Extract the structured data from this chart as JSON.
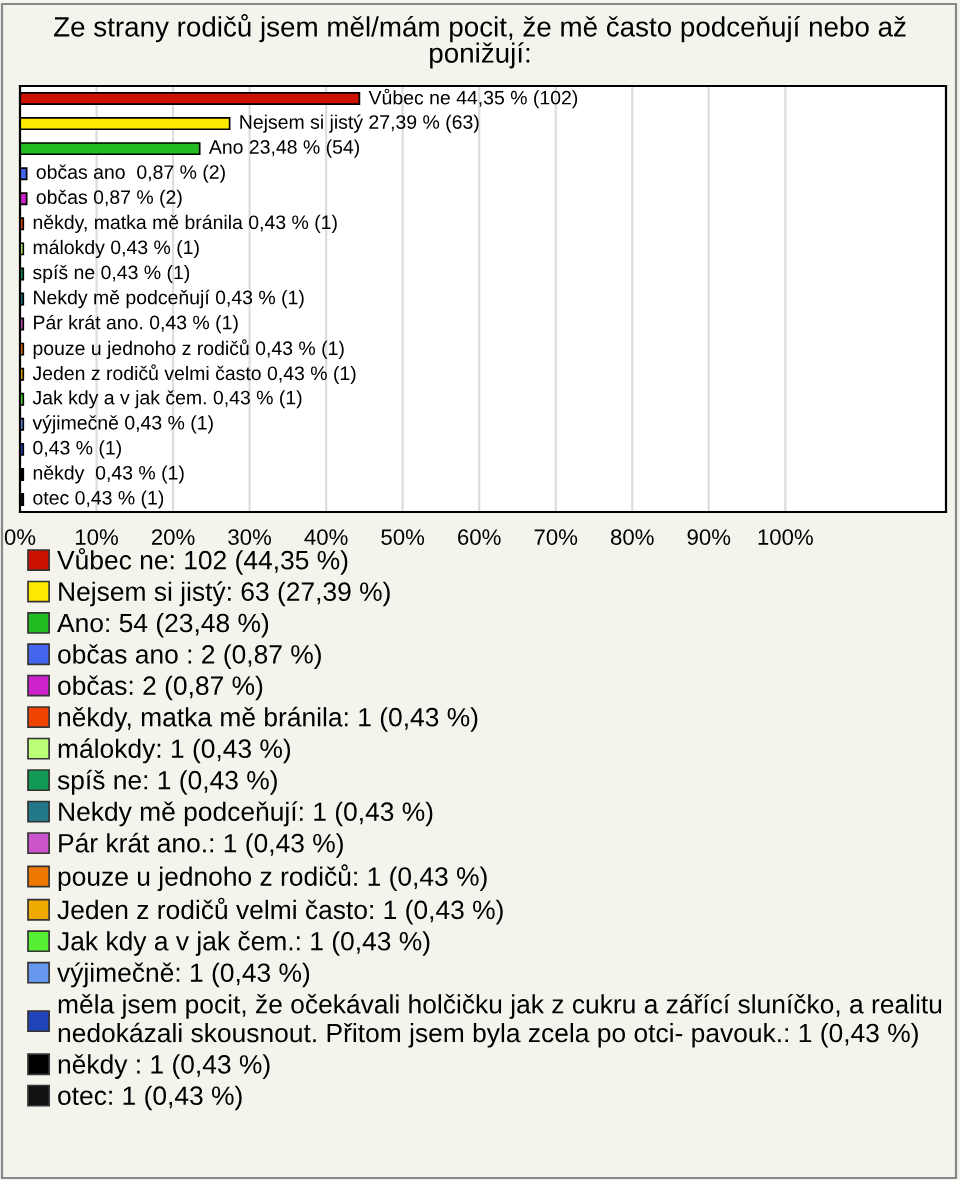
{
  "chart_data": {
    "type": "bar",
    "orientation": "horizontal",
    "title": "Ze strany rodičů jsem měl/mám pocit, že mě často podceňují nebo až ponižují:",
    "categories": [
      null,
      null,
      null,
      null,
      null,
      null,
      null,
      null,
      null,
      null,
      null,
      null,
      null,
      null,
      null,
      null,
      null
    ],
    "series": [
      {
        "name": "Vůbec ne: 102 (44,35 %)",
        "color": "#cc1100",
        "values": [
          44.35,
          null,
          null,
          null,
          null,
          null,
          null,
          null,
          null,
          null,
          null,
          null,
          null,
          null,
          null,
          null,
          null
        ],
        "value_labels": [
          "Vůbec ne 44,35 % (102)",
          null,
          null,
          null,
          null,
          null,
          null,
          null,
          null,
          null,
          null,
          null,
          null,
          null,
          null,
          null,
          null
        ]
      },
      {
        "name": "Nejsem si jistý: 63 (27,39 %)",
        "color": "#ffe800",
        "values": [
          null,
          27.39,
          null,
          null,
          null,
          null,
          null,
          null,
          null,
          null,
          null,
          null,
          null,
          null,
          null,
          null,
          null
        ],
        "value_labels": [
          null,
          "Nejsem si jistý 27,39 % (63)",
          null,
          null,
          null,
          null,
          null,
          null,
          null,
          null,
          null,
          null,
          null,
          null,
          null,
          null,
          null
        ]
      },
      {
        "name": "Ano: 54 (23,48 %)",
        "color": "#22bb22",
        "values": [
          null,
          null,
          23.48,
          null,
          null,
          null,
          null,
          null,
          null,
          null,
          null,
          null,
          null,
          null,
          null,
          null,
          null
        ],
        "value_labels": [
          null,
          null,
          "Ano 23,48 % (54)",
          null,
          null,
          null,
          null,
          null,
          null,
          null,
          null,
          null,
          null,
          null,
          null,
          null,
          null
        ]
      },
      {
        "name": "občas ano : 2 (0,87 %)",
        "color": "#4466ee",
        "values": [
          null,
          null,
          null,
          0.87,
          null,
          null,
          null,
          null,
          null,
          null,
          null,
          null,
          null,
          null,
          null,
          null,
          null
        ],
        "value_labels": [
          null,
          null,
          null,
          "občas ano  0,87 % (2)",
          null,
          null,
          null,
          null,
          null,
          null,
          null,
          null,
          null,
          null,
          null,
          null,
          null
        ]
      },
      {
        "name": "občas: 2 (0,87 %)",
        "color": "#cc22cc",
        "values": [
          null,
          null,
          null,
          null,
          0.87,
          null,
          null,
          null,
          null,
          null,
          null,
          null,
          null,
          null,
          null,
          null,
          null
        ],
        "value_labels": [
          null,
          null,
          null,
          null,
          "občas 0,87 % (2)",
          null,
          null,
          null,
          null,
          null,
          null,
          null,
          null,
          null,
          null,
          null,
          null
        ]
      },
      {
        "name": "někdy, matka mě bránila: 1 (0,43 %)",
        "color": "#ee4400",
        "values": [
          null,
          null,
          null,
          null,
          null,
          0.43,
          null,
          null,
          null,
          null,
          null,
          null,
          null,
          null,
          null,
          null,
          null
        ],
        "value_labels": [
          null,
          null,
          null,
          null,
          null,
          "někdy, matka mě bránila 0,43 % (1)",
          null,
          null,
          null,
          null,
          null,
          null,
          null,
          null,
          null,
          null,
          null
        ]
      },
      {
        "name": "málokdy: 1 (0,43 %)",
        "color": "#bbff77",
        "values": [
          null,
          null,
          null,
          null,
          null,
          null,
          0.43,
          null,
          null,
          null,
          null,
          null,
          null,
          null,
          null,
          null,
          null
        ],
        "value_labels": [
          null,
          null,
          null,
          null,
          null,
          null,
          "málokdy 0,43 % (1)",
          null,
          null,
          null,
          null,
          null,
          null,
          null,
          null,
          null,
          null
        ]
      },
      {
        "name": "spíš ne: 1 (0,43 %)",
        "color": "#119955",
        "values": [
          null,
          null,
          null,
          null,
          null,
          null,
          null,
          0.43,
          null,
          null,
          null,
          null,
          null,
          null,
          null,
          null,
          null
        ],
        "value_labels": [
          null,
          null,
          null,
          null,
          null,
          null,
          null,
          "spíš ne 0,43 % (1)",
          null,
          null,
          null,
          null,
          null,
          null,
          null,
          null,
          null
        ]
      },
      {
        "name": "Nekdy mě podceňují: 1 (0,43 %)",
        "color": "#227788",
        "values": [
          null,
          null,
          null,
          null,
          null,
          null,
          null,
          null,
          0.43,
          null,
          null,
          null,
          null,
          null,
          null,
          null,
          null
        ],
        "value_labels": [
          null,
          null,
          null,
          null,
          null,
          null,
          null,
          null,
          "Nekdy mě podceňují 0,43 % (1)",
          null,
          null,
          null,
          null,
          null,
          null,
          null,
          null
        ]
      },
      {
        "name": "Pár krát ano.: 1 (0,43 %)",
        "color": "#cc55cc",
        "values": [
          null,
          null,
          null,
          null,
          null,
          null,
          null,
          null,
          null,
          0.43,
          null,
          null,
          null,
          null,
          null,
          null,
          null
        ],
        "value_labels": [
          null,
          null,
          null,
          null,
          null,
          null,
          null,
          null,
          null,
          "Pár krát ano. 0,43 % (1)",
          null,
          null,
          null,
          null,
          null,
          null,
          null
        ]
      },
      {
        "name": "pouze u jednoho z rodičů: 1 (0,43 %)",
        "color": "#ee7700",
        "values": [
          null,
          null,
          null,
          null,
          null,
          null,
          null,
          null,
          null,
          null,
          0.43,
          null,
          null,
          null,
          null,
          null,
          null
        ],
        "value_labels": [
          null,
          null,
          null,
          null,
          null,
          null,
          null,
          null,
          null,
          null,
          "pouze u jednoho z rodičů 0,43 % (1)",
          null,
          null,
          null,
          null,
          null,
          null
        ]
      },
      {
        "name": "Jeden z rodičů velmi často: 1 (0,43 %)",
        "color": "#eeaa00",
        "values": [
          null,
          null,
          null,
          null,
          null,
          null,
          null,
          null,
          null,
          null,
          null,
          0.43,
          null,
          null,
          null,
          null,
          null
        ],
        "value_labels": [
          null,
          null,
          null,
          null,
          null,
          null,
          null,
          null,
          null,
          null,
          null,
          "Jeden z rodičů velmi často 0,43 % (1)",
          null,
          null,
          null,
          null,
          null
        ]
      },
      {
        "name": "Jak kdy a v jak čem.: 1 (0,43 %)",
        "color": "#55ee33",
        "values": [
          null,
          null,
          null,
          null,
          null,
          null,
          null,
          null,
          null,
          null,
          null,
          null,
          0.43,
          null,
          null,
          null,
          null
        ],
        "value_labels": [
          null,
          null,
          null,
          null,
          null,
          null,
          null,
          null,
          null,
          null,
          null,
          null,
          "Jak kdy a v jak čem. 0,43 % (1)",
          null,
          null,
          null,
          null
        ]
      },
      {
        "name": "výjimečně: 1 (0,43 %)",
        "color": "#6699ee",
        "values": [
          null,
          null,
          null,
          null,
          null,
          null,
          null,
          null,
          null,
          null,
          null,
          null,
          null,
          0.43,
          null,
          null,
          null
        ],
        "value_labels": [
          null,
          null,
          null,
          null,
          null,
          null,
          null,
          null,
          null,
          null,
          null,
          null,
          null,
          "výjimečně 0,43 % (1)",
          null,
          null,
          null
        ]
      },
      {
        "name": "měla jsem pocit, že očekávali holčičku jak z cukru a zářící sluníčko, a realitu\nnedokázali skousnout. Přitom jsem byla zcela po otci- pavouk.: 1 (0,43 %)",
        "color": "#2244bb",
        "values": [
          null,
          null,
          null,
          null,
          null,
          null,
          null,
          null,
          null,
          null,
          null,
          null,
          null,
          null,
          0.43,
          null,
          null
        ],
        "value_labels": [
          null,
          null,
          null,
          null,
          null,
          null,
          null,
          null,
          null,
          null,
          null,
          null,
          null,
          null,
          "0,43 % (1)",
          null,
          null
        ]
      },
      {
        "name": "někdy : 1 (0,43 %)",
        "color": "#000000",
        "values": [
          null,
          null,
          null,
          null,
          null,
          null,
          null,
          null,
          null,
          null,
          null,
          null,
          null,
          null,
          null,
          0.43,
          null
        ],
        "value_labels": [
          null,
          null,
          null,
          null,
          null,
          null,
          null,
          null,
          null,
          null,
          null,
          null,
          null,
          null,
          null,
          "někdy  0,43 % (1)",
          null
        ]
      },
      {
        "name": "otec: 1 (0,43 %)",
        "color": "#111111",
        "values": [
          null,
          null,
          null,
          null,
          null,
          null,
          null,
          null,
          null,
          null,
          null,
          null,
          null,
          null,
          null,
          null,
          0.43
        ],
        "value_labels": [
          null,
          null,
          null,
          null,
          null,
          null,
          null,
          null,
          null,
          null,
          null,
          null,
          null,
          null,
          null,
          null,
          "otec 0,43 % (1)"
        ]
      }
    ],
    "xlim": [
      0,
      121
    ],
    "xticks": [
      {
        "value": 0,
        "label": "0%"
      },
      {
        "value": 10,
        "label": "10%"
      },
      {
        "value": 20,
        "label": "20%"
      },
      {
        "value": 30,
        "label": "30%"
      },
      {
        "value": 40,
        "label": "40%"
      },
      {
        "value": 50,
        "label": "50%"
      },
      {
        "value": 60,
        "label": "60%"
      },
      {
        "value": 70,
        "label": "70%"
      },
      {
        "value": 80,
        "label": "80%"
      },
      {
        "value": 90,
        "label": "90%"
      },
      {
        "value": 100,
        "label": "100%"
      }
    ],
    "grid": "x",
    "legend": "bottom"
  }
}
